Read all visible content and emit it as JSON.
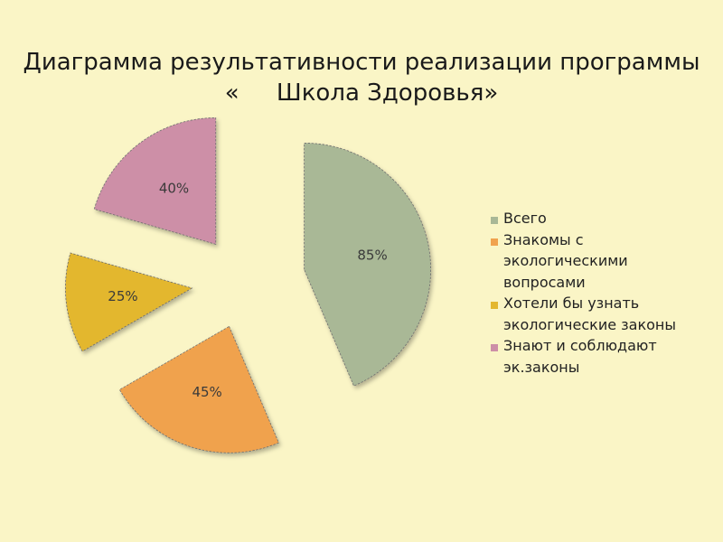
{
  "title_lines": [
    "Диаграмма результативности реализации программы",
    "«     Школа Здоровья»"
  ],
  "chart_data": {
    "type": "pie",
    "title": "Диаграмма результативности реализации программы «     Школа Здоровья»",
    "exploded": true,
    "legend_position": "right",
    "categories": [
      "Всего",
      "Знакомы с экологическими вопросами",
      "Хотели бы узнать экологические законы",
      "Знают и соблюдают эк.законы"
    ],
    "legend_labels": [
      "Всего",
      "Знакомы с\nэкологическими\nвопросами",
      "Хотели бы узнать\nэкологические законы",
      "Знают и соблюдают\nэк.законы"
    ],
    "values": [
      85,
      45,
      25,
      40
    ],
    "data_labels": [
      "85%",
      "45%",
      "25%",
      "40%"
    ],
    "colors": [
      "#A9B896",
      "#F0A24E",
      "#E3B72E",
      "#CD8FA7"
    ]
  }
}
